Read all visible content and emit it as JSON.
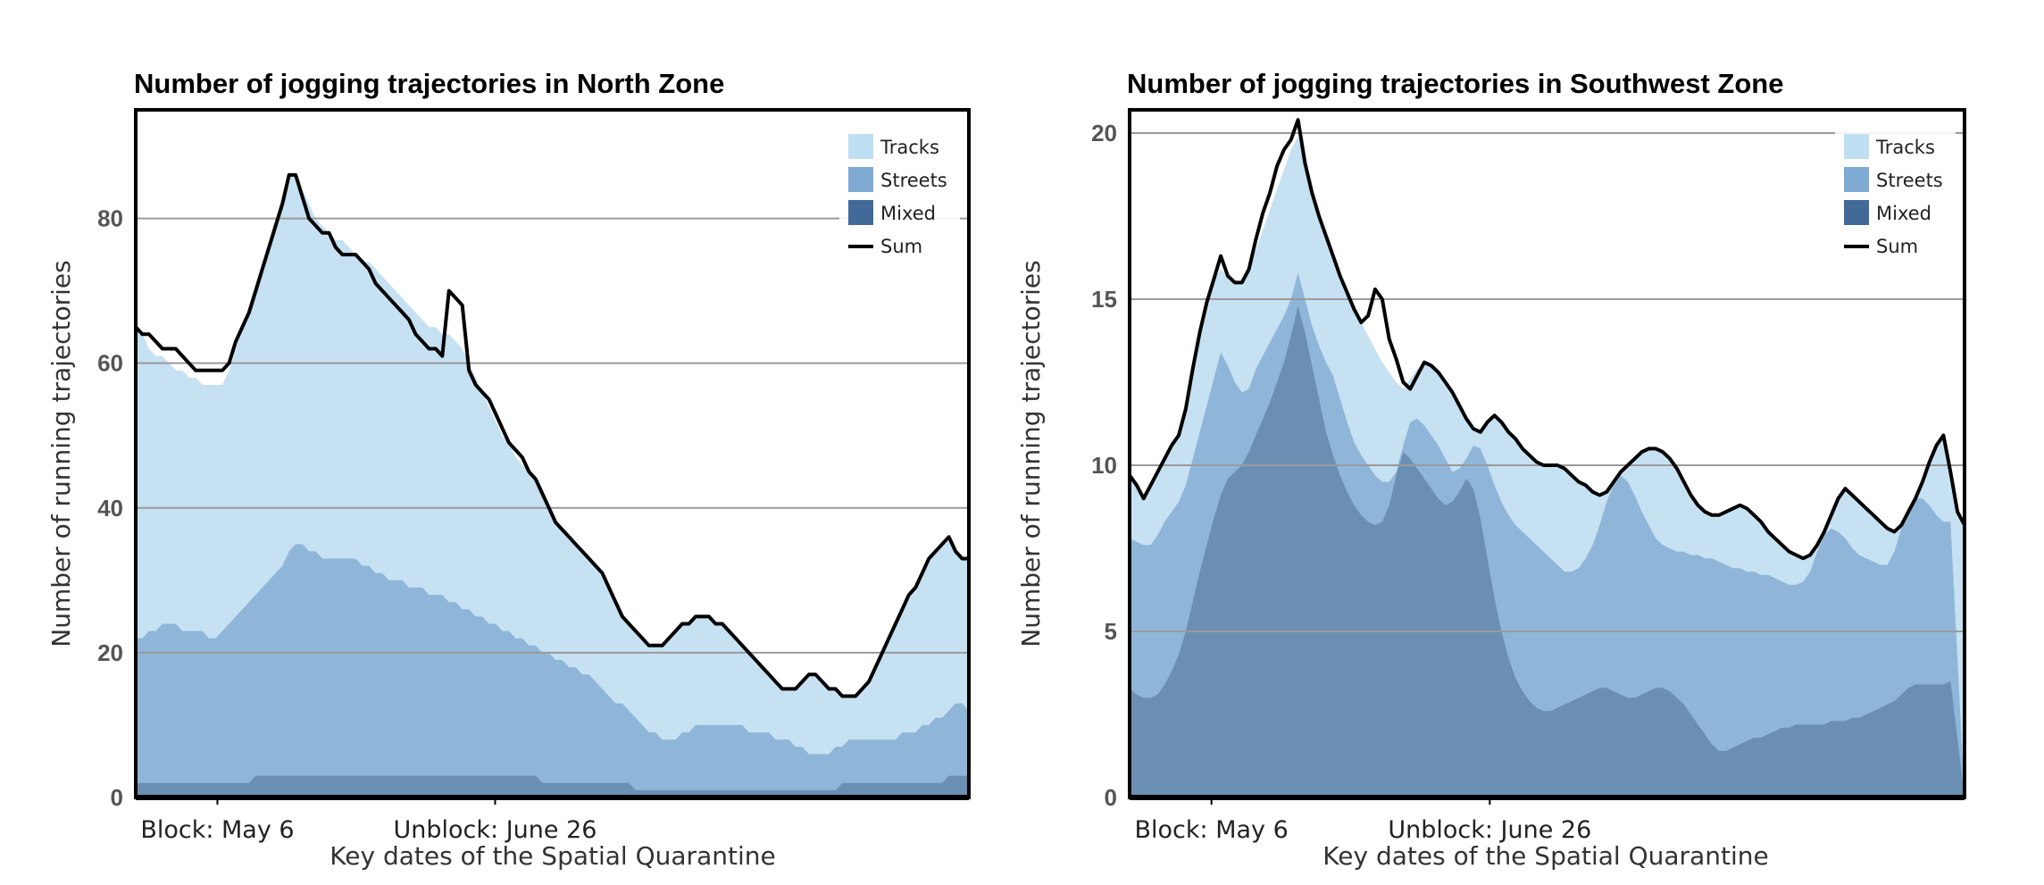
{
  "colors": {
    "tracks": "#c6e1f2",
    "streets": "#8fb6d9",
    "mixed": "#6b8fb3",
    "sum": "#000000",
    "grid": "#9a9a9a"
  },
  "chart_data": [
    {
      "type": "area",
      "title": "Number of jogging trajectories in North Zone",
      "xlabel": "Key dates of the Spatial Quarantine",
      "ylabel": "Number of running trajectories",
      "ylim": [
        0,
        95
      ],
      "yticks": [
        0,
        20,
        40,
        60,
        80
      ],
      "grid": "horizontal",
      "legend": "top-right",
      "x_range": [
        "2020-04-21",
        "2020-09-21"
      ],
      "key_dates": [
        {
          "label": "Block: May 6",
          "date": "2020-05-06"
        },
        {
          "label": "Unblock: June 26",
          "date": "2020-06-26"
        }
      ],
      "series": [
        {
          "name": "Tracks",
          "key": "tracks",
          "values": [
            65,
            64,
            62,
            61,
            61,
            60,
            59,
            59,
            58,
            58,
            57,
            57,
            57,
            57,
            59,
            62,
            65,
            68,
            71,
            74,
            77,
            80,
            83,
            86,
            86,
            84,
            82,
            80,
            79,
            78,
            77,
            77,
            76,
            75,
            74,
            74,
            73,
            72,
            71,
            70,
            69,
            68,
            67,
            66,
            65,
            65,
            64,
            64,
            63,
            62,
            60,
            58,
            56,
            54,
            52,
            50,
            49,
            47,
            46,
            45,
            44,
            42,
            40,
            38,
            37,
            36,
            35,
            34,
            33,
            32,
            31,
            29,
            27,
            25,
            24,
            23,
            22,
            21,
            21,
            21,
            22,
            23,
            24,
            24,
            25,
            25,
            25,
            24,
            24,
            23,
            22,
            21,
            20,
            19,
            18,
            17,
            16,
            15,
            15,
            15,
            16,
            17,
            17,
            16,
            15,
            15,
            14,
            14,
            14,
            15,
            16,
            18,
            20,
            22,
            24,
            26,
            28,
            29,
            31,
            33,
            34,
            35,
            36,
            34,
            33,
            33
          ]
        },
        {
          "name": "Streets",
          "key": "streets",
          "values": [
            22,
            22,
            23,
            23,
            24,
            24,
            24,
            23,
            23,
            23,
            23,
            22,
            22,
            23,
            24,
            25,
            26,
            27,
            28,
            29,
            30,
            31,
            32,
            34,
            35,
            35,
            34,
            34,
            33,
            33,
            33,
            33,
            33,
            33,
            32,
            32,
            31,
            31,
            30,
            30,
            30,
            29,
            29,
            29,
            28,
            28,
            28,
            27,
            27,
            26,
            26,
            25,
            25,
            24,
            24,
            23,
            23,
            22,
            22,
            21,
            21,
            20,
            20,
            19,
            19,
            18,
            18,
            17,
            17,
            16,
            15,
            14,
            13,
            13,
            12,
            11,
            10,
            9,
            9,
            8,
            8,
            8,
            9,
            9,
            10,
            10,
            10,
            10,
            10,
            10,
            10,
            10,
            9,
            9,
            9,
            9,
            8,
            8,
            8,
            7,
            7,
            6,
            6,
            6,
            6,
            7,
            7,
            8,
            8,
            8,
            8,
            8,
            8,
            8,
            8,
            9,
            9,
            9,
            10,
            10,
            11,
            11,
            12,
            13,
            13,
            12
          ]
        },
        {
          "name": "Mixed",
          "key": "mixed",
          "values": [
            2,
            2,
            2,
            2,
            2,
            2,
            2,
            2,
            2,
            2,
            2,
            2,
            2,
            2,
            2,
            2,
            2,
            2,
            3,
            3,
            3,
            3,
            3,
            3,
            3,
            3,
            3,
            3,
            3,
            3,
            3,
            3,
            3,
            3,
            3,
            3,
            3,
            3,
            3,
            3,
            3,
            3,
            3,
            3,
            3,
            3,
            3,
            3,
            3,
            3,
            3,
            3,
            3,
            3,
            3,
            3,
            3,
            3,
            3,
            3,
            3,
            2,
            2,
            2,
            2,
            2,
            2,
            2,
            2,
            2,
            2,
            2,
            2,
            2,
            2,
            1,
            1,
            1,
            1,
            1,
            1,
            1,
            1,
            1,
            1,
            1,
            1,
            1,
            1,
            1,
            1,
            1,
            1,
            1,
            1,
            1,
            1,
            1,
            1,
            1,
            1,
            1,
            1,
            1,
            1,
            1,
            2,
            2,
            2,
            2,
            2,
            2,
            2,
            2,
            2,
            2,
            2,
            2,
            2,
            2,
            2,
            2,
            3,
            3,
            3,
            3
          ]
        },
        {
          "name": "Sum",
          "key": "sum",
          "values": [
            65,
            64,
            64,
            63,
            62,
            62,
            62,
            61,
            60,
            59,
            59,
            59,
            59,
            59,
            60,
            63,
            65,
            67,
            70,
            73,
            76,
            79,
            82,
            86,
            86,
            83,
            80,
            79,
            78,
            78,
            76,
            75,
            75,
            75,
            74,
            73,
            71,
            70,
            69,
            68,
            67,
            66,
            64,
            63,
            62,
            62,
            61,
            70,
            69,
            68,
            59,
            57,
            56,
            55,
            53,
            51,
            49,
            48,
            47,
            45,
            44,
            42,
            40,
            38,
            37,
            36,
            35,
            34,
            33,
            32,
            31,
            29,
            27,
            25,
            24,
            23,
            22,
            21,
            21,
            21,
            22,
            23,
            24,
            24,
            25,
            25,
            25,
            24,
            24,
            23,
            22,
            21,
            20,
            19,
            18,
            17,
            16,
            15,
            15,
            15,
            16,
            17,
            17,
            16,
            15,
            15,
            14,
            14,
            14,
            15,
            16,
            18,
            20,
            22,
            24,
            26,
            28,
            29,
            31,
            33,
            34,
            35,
            36,
            34,
            33,
            33
          ]
        }
      ]
    },
    {
      "type": "area",
      "title": "Number of jogging trajectories in Southwest Zone",
      "xlabel": "Key dates of the Spatial Quarantine",
      "ylabel": "Number of running trajectories",
      "ylim": [
        0,
        20.7
      ],
      "yticks": [
        0,
        5,
        10,
        15,
        20
      ],
      "grid": "horizontal",
      "legend": "top-right",
      "x_range": [
        "2020-04-21",
        "2020-09-21"
      ],
      "key_dates": [
        {
          "label": "Block: May 6",
          "date": "2020-05-06"
        },
        {
          "label": "Unblock: June 26",
          "date": "2020-06-26"
        }
      ],
      "series": [
        {
          "name": "Tracks",
          "key": "tracks",
          "values": [
            9.7,
            9.4,
            9.0,
            9.4,
            9.8,
            10.2,
            10.6,
            10.9,
            11.7,
            12.9,
            14.0,
            14.9,
            15.6,
            15.9,
            15.7,
            15.5,
            15.5,
            15.9,
            16.5,
            17.1,
            17.7,
            18.3,
            18.9,
            19.5,
            19.9,
            19.1,
            18.2,
            17.5,
            16.9,
            16.3,
            15.7,
            15.2,
            14.7,
            14.3,
            13.9,
            13.5,
            13.1,
            12.8,
            12.5,
            12.3,
            12.6,
            12.9,
            13.1,
            13.0,
            12.8,
            12.5,
            12.2,
            11.8,
            11.4,
            11.1,
            11.0,
            11.3,
            11.5,
            11.3,
            11.0,
            10.8,
            10.5,
            10.3,
            10.1,
            10.0,
            10.0,
            10.0,
            9.9,
            9.7,
            9.5,
            9.4,
            9.2,
            9.1,
            9.2,
            9.5,
            9.8,
            10.0,
            10.2,
            10.4,
            10.5,
            10.5,
            10.4,
            10.2,
            9.9,
            9.5,
            9.1,
            8.8,
            8.6,
            8.5,
            8.5,
            8.6,
            8.7,
            8.8,
            8.7,
            8.5,
            8.3,
            8.0,
            7.8,
            7.6,
            7.4,
            7.3,
            7.2,
            7.3,
            7.6,
            8.0,
            8.5,
            9.0,
            9.3,
            9.1,
            8.9,
            8.7,
            8.5,
            8.3,
            8.1,
            8.0,
            8.2,
            8.6,
            9.0,
            9.5,
            10.1,
            10.6,
            10.9,
            9.8,
            8.6,
            8.2
          ]
        },
        {
          "name": "Streets",
          "key": "streets",
          "values": [
            7.8,
            7.7,
            7.6,
            7.6,
            7.9,
            8.3,
            8.6,
            8.9,
            9.4,
            10.2,
            11.0,
            11.8,
            12.6,
            13.4,
            13.0,
            12.5,
            12.2,
            12.3,
            12.9,
            13.3,
            13.7,
            14.1,
            14.5,
            15.0,
            15.8,
            15.0,
            14.2,
            13.6,
            13.1,
            12.7,
            12.0,
            11.3,
            10.7,
            10.3,
            10.0,
            9.7,
            9.5,
            9.5,
            9.8,
            10.6,
            11.3,
            11.4,
            11.2,
            10.9,
            10.6,
            10.2,
            9.8,
            9.9,
            10.2,
            10.6,
            10.5,
            10.0,
            9.4,
            8.9,
            8.5,
            8.2,
            8.0,
            7.8,
            7.6,
            7.4,
            7.2,
            7.0,
            6.8,
            6.8,
            6.9,
            7.2,
            7.6,
            8.2,
            8.9,
            9.4,
            9.7,
            9.5,
            9.1,
            8.6,
            8.2,
            7.8,
            7.6,
            7.5,
            7.4,
            7.4,
            7.3,
            7.3,
            7.2,
            7.2,
            7.1,
            7.0,
            6.9,
            6.9,
            6.8,
            6.8,
            6.7,
            6.7,
            6.6,
            6.5,
            6.4,
            6.4,
            6.5,
            6.8,
            7.4,
            7.9,
            8.1,
            8.0,
            7.8,
            7.5,
            7.3,
            7.2,
            7.1,
            7.0,
            7.0,
            7.4,
            8.1,
            8.7,
            9.0,
            9.0,
            8.8,
            8.5,
            8.3,
            8.3
          ]
        },
        {
          "name": "Mixed",
          "key": "mixed",
          "values": [
            3.3,
            3.1,
            3.0,
            3.0,
            3.1,
            3.4,
            3.8,
            4.3,
            5.0,
            5.9,
            6.8,
            7.6,
            8.4,
            9.1,
            9.6,
            9.8,
            10.0,
            10.4,
            10.9,
            11.4,
            11.9,
            12.5,
            13.1,
            13.9,
            14.8,
            14.0,
            13.0,
            12.0,
            11.0,
            10.3,
            9.7,
            9.2,
            8.8,
            8.5,
            8.3,
            8.2,
            8.3,
            8.8,
            9.7,
            10.4,
            10.2,
            9.9,
            9.6,
            9.3,
            9.0,
            8.8,
            8.9,
            9.2,
            9.6,
            9.3,
            8.4,
            7.2,
            6.0,
            5.0,
            4.2,
            3.6,
            3.2,
            2.9,
            2.7,
            2.6,
            2.6,
            2.7,
            2.8,
            2.9,
            3.0,
            3.1,
            3.2,
            3.3,
            3.3,
            3.2,
            3.1,
            3.0,
            3.0,
            3.1,
            3.2,
            3.3,
            3.3,
            3.2,
            3.0,
            2.8,
            2.5,
            2.2,
            1.9,
            1.6,
            1.4,
            1.4,
            1.5,
            1.6,
            1.7,
            1.8,
            1.8,
            1.9,
            2.0,
            2.1,
            2.1,
            2.2,
            2.2,
            2.2,
            2.2,
            2.2,
            2.3,
            2.3,
            2.3,
            2.4,
            2.4,
            2.5,
            2.6,
            2.7,
            2.8,
            2.9,
            3.1,
            3.3,
            3.4,
            3.4,
            3.4,
            3.4,
            3.4,
            3.5
          ]
        },
        {
          "name": "Sum",
          "key": "sum",
          "values": [
            9.7,
            9.4,
            9.0,
            9.4,
            9.8,
            10.2,
            10.6,
            10.9,
            11.7,
            12.9,
            14.0,
            14.9,
            15.6,
            16.3,
            15.7,
            15.5,
            15.5,
            15.9,
            16.8,
            17.6,
            18.2,
            19.0,
            19.5,
            19.8,
            20.4,
            19.1,
            18.2,
            17.5,
            16.9,
            16.3,
            15.7,
            15.2,
            14.7,
            14.3,
            14.5,
            15.3,
            15.0,
            13.8,
            13.2,
            12.5,
            12.3,
            12.7,
            13.1,
            13.0,
            12.8,
            12.5,
            12.2,
            11.8,
            11.4,
            11.1,
            11.0,
            11.3,
            11.5,
            11.3,
            11.0,
            10.8,
            10.5,
            10.3,
            10.1,
            10.0,
            10.0,
            10.0,
            9.9,
            9.7,
            9.5,
            9.4,
            9.2,
            9.1,
            9.2,
            9.5,
            9.8,
            10.0,
            10.2,
            10.4,
            10.5,
            10.5,
            10.4,
            10.2,
            9.9,
            9.5,
            9.1,
            8.8,
            8.6,
            8.5,
            8.5,
            8.6,
            8.7,
            8.8,
            8.7,
            8.5,
            8.3,
            8.0,
            7.8,
            7.6,
            7.4,
            7.3,
            7.2,
            7.3,
            7.6,
            8.0,
            8.5,
            9.0,
            9.3,
            9.1,
            8.9,
            8.7,
            8.5,
            8.3,
            8.1,
            8.0,
            8.2,
            8.6,
            9.0,
            9.5,
            10.1,
            10.6,
            10.9,
            9.8,
            8.6,
            8.2
          ]
        }
      ]
    }
  ]
}
